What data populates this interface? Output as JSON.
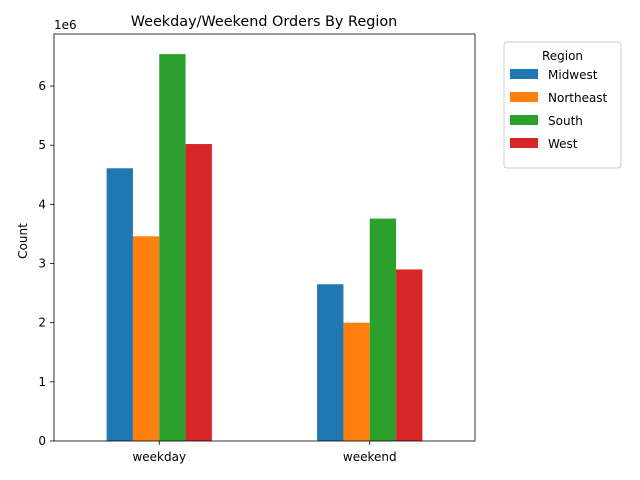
{
  "chart_data": {
    "type": "bar",
    "title": "Weekday/Weekend Orders By Region",
    "xlabel": "",
    "ylabel": "Count",
    "y_multiplier_label": "1e6",
    "categories": [
      "weekday",
      "weekend"
    ],
    "series": [
      {
        "name": "Midwest",
        "color": "#1f77b4",
        "values": [
          4610000,
          2650000
        ]
      },
      {
        "name": "Northeast",
        "color": "#ff7f0e",
        "values": [
          3460000,
          2000000
        ]
      },
      {
        "name": "South",
        "color": "#2ca02c",
        "values": [
          6540000,
          3760000
        ]
      },
      {
        "name": "West",
        "color": "#d62728",
        "values": [
          5020000,
          2900000
        ]
      }
    ],
    "ylim": [
      0,
      6880000
    ],
    "yticks": [
      0,
      1000000,
      2000000,
      3000000,
      4000000,
      5000000,
      6000000
    ],
    "ytick_labels": [
      "0",
      "1",
      "2",
      "3",
      "4",
      "5",
      "6"
    ],
    "grid": false,
    "legend": {
      "title": "Region",
      "placement": "outside-top-right"
    }
  }
}
